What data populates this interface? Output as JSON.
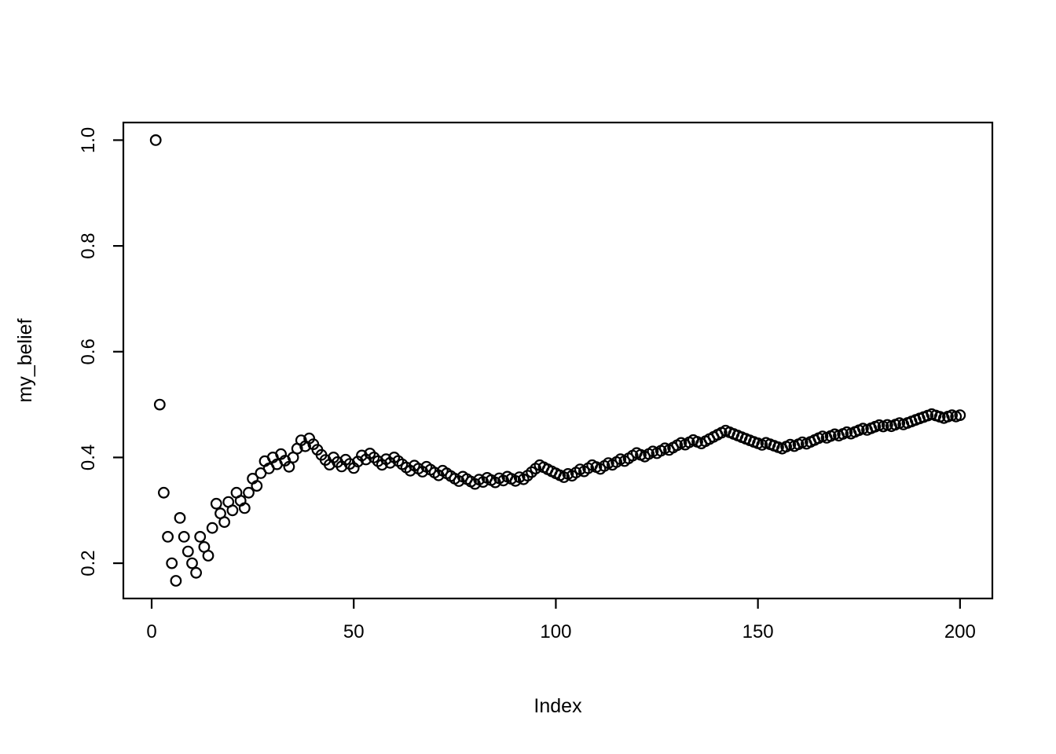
{
  "figure": {
    "background": "#ffffff",
    "foreground": "#000000"
  },
  "chart_data": {
    "type": "scatter",
    "title": "",
    "xlabel": "Index",
    "ylabel": "my_belief",
    "marker": "open-circle",
    "legend": "none",
    "grid": false,
    "xlim": [
      -7.0,
      208.0
    ],
    "ylim": [
      0.1333,
      1.0333
    ],
    "x_ticks": [
      0,
      50,
      100,
      150,
      200
    ],
    "x_tick_labels": [
      "0",
      "50",
      "100",
      "150",
      "200"
    ],
    "y_ticks": [
      0.2,
      0.4,
      0.6,
      0.8,
      1.0
    ],
    "y_tick_labels": [
      "0.2",
      "0.4",
      "0.6",
      "0.8",
      "1.0"
    ],
    "x": {
      "from": 1,
      "to": 200,
      "step": 1
    },
    "values": [
      1.0,
      0.5,
      0.3333,
      0.25,
      0.2,
      0.1667,
      0.2857,
      0.25,
      0.2222,
      0.2,
      0.1818,
      0.25,
      0.2308,
      0.2143,
      0.2667,
      0.3125,
      0.2941,
      0.2778,
      0.3158,
      0.3,
      0.3333,
      0.3182,
      0.3043,
      0.3333,
      0.36,
      0.3462,
      0.3704,
      0.3929,
      0.3793,
      0.4,
      0.3871,
      0.4063,
      0.3939,
      0.3824,
      0.4,
      0.4167,
      0.4324,
      0.4211,
      0.4359,
      0.425,
      0.4146,
      0.4048,
      0.3953,
      0.3864,
      0.4,
      0.3913,
      0.383,
      0.3958,
      0.3878,
      0.38,
      0.3922,
      0.4038,
      0.3962,
      0.4074,
      0.4,
      0.3929,
      0.386,
      0.3966,
      0.3898,
      0.4,
      0.3934,
      0.3871,
      0.381,
      0.375,
      0.3846,
      0.3788,
      0.3731,
      0.3824,
      0.3768,
      0.3714,
      0.3662,
      0.375,
      0.3699,
      0.3649,
      0.36,
      0.3553,
      0.3636,
      0.359,
      0.3544,
      0.35,
      0.358,
      0.3537,
      0.3614,
      0.3571,
      0.3529,
      0.3605,
      0.3563,
      0.3636,
      0.3596,
      0.3556,
      0.3626,
      0.3587,
      0.3656,
      0.3723,
      0.3789,
      0.3854,
      0.3814,
      0.3776,
      0.3737,
      0.37,
      0.3663,
      0.3627,
      0.3689,
      0.3654,
      0.3714,
      0.3774,
      0.3738,
      0.3796,
      0.3853,
      0.3818,
      0.3784,
      0.3839,
      0.3894,
      0.386,
      0.3913,
      0.3966,
      0.3932,
      0.3983,
      0.4034,
      0.4083,
      0.405,
      0.4016,
      0.4065,
      0.4113,
      0.408,
      0.4127,
      0.4173,
      0.4141,
      0.4186,
      0.4231,
      0.4275,
      0.4242,
      0.4286,
      0.4328,
      0.4296,
      0.4265,
      0.4307,
      0.4348,
      0.4388,
      0.4429,
      0.4468,
      0.4507,
      0.4476,
      0.4444,
      0.4414,
      0.4384,
      0.4354,
      0.4324,
      0.4295,
      0.4267,
      0.4238,
      0.4276,
      0.4248,
      0.4221,
      0.4194,
      0.4167,
      0.4204,
      0.4241,
      0.4214,
      0.425,
      0.4286,
      0.4259,
      0.4294,
      0.4329,
      0.4364,
      0.4398,
      0.4371,
      0.4405,
      0.4438,
      0.4412,
      0.4444,
      0.4477,
      0.4451,
      0.4483,
      0.4514,
      0.4545,
      0.452,
      0.4551,
      0.4581,
      0.4611,
      0.4586,
      0.4615,
      0.459,
      0.462,
      0.4649,
      0.4624,
      0.4652,
      0.4681,
      0.4709,
      0.4737,
      0.4764,
      0.4792,
      0.4819,
      0.4794,
      0.4769,
      0.4745,
      0.4772,
      0.4798,
      0.4774,
      0.48
    ]
  }
}
